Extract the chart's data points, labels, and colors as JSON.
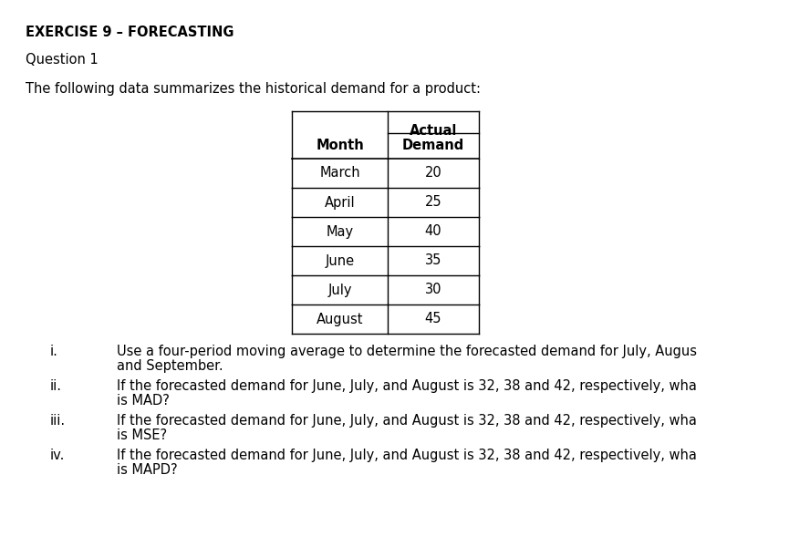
{
  "title": "EXERCISE 9 – FORECASTING",
  "question": "Question 1",
  "intro_text": "The following data summarizes the historical demand for a product:",
  "table_months": [
    "March",
    "April",
    "May",
    "June",
    "July",
    "August"
  ],
  "table_demands": [
    "20",
    "25",
    "40",
    "35",
    "30",
    "45"
  ],
  "items": [
    {
      "label": "i.",
      "text1": "Use a four-period moving average to determine the forecasted demand for July, Augus",
      "text2": "and September."
    },
    {
      "label": "ii.",
      "text1": "If the forecasted demand for June, July, and August is 32, 38 and 42, respectively, wha",
      "text2": "is MAD?"
    },
    {
      "label": "iii.",
      "text1": "If the forecasted demand for June, July, and August is 32, 38 and 42, respectively, wha",
      "text2": "is MSE?"
    },
    {
      "label": "iv.",
      "text1": "If the forecasted demand for June, July, and August is 32, 38 and 42, respectively, wha",
      "text2": "is MAPD?"
    }
  ],
  "bg_color": "#ffffff",
  "text_color": "#000000",
  "title_fontsize": 10.5,
  "body_fontsize": 10.5,
  "table_fontsize": 10.5
}
